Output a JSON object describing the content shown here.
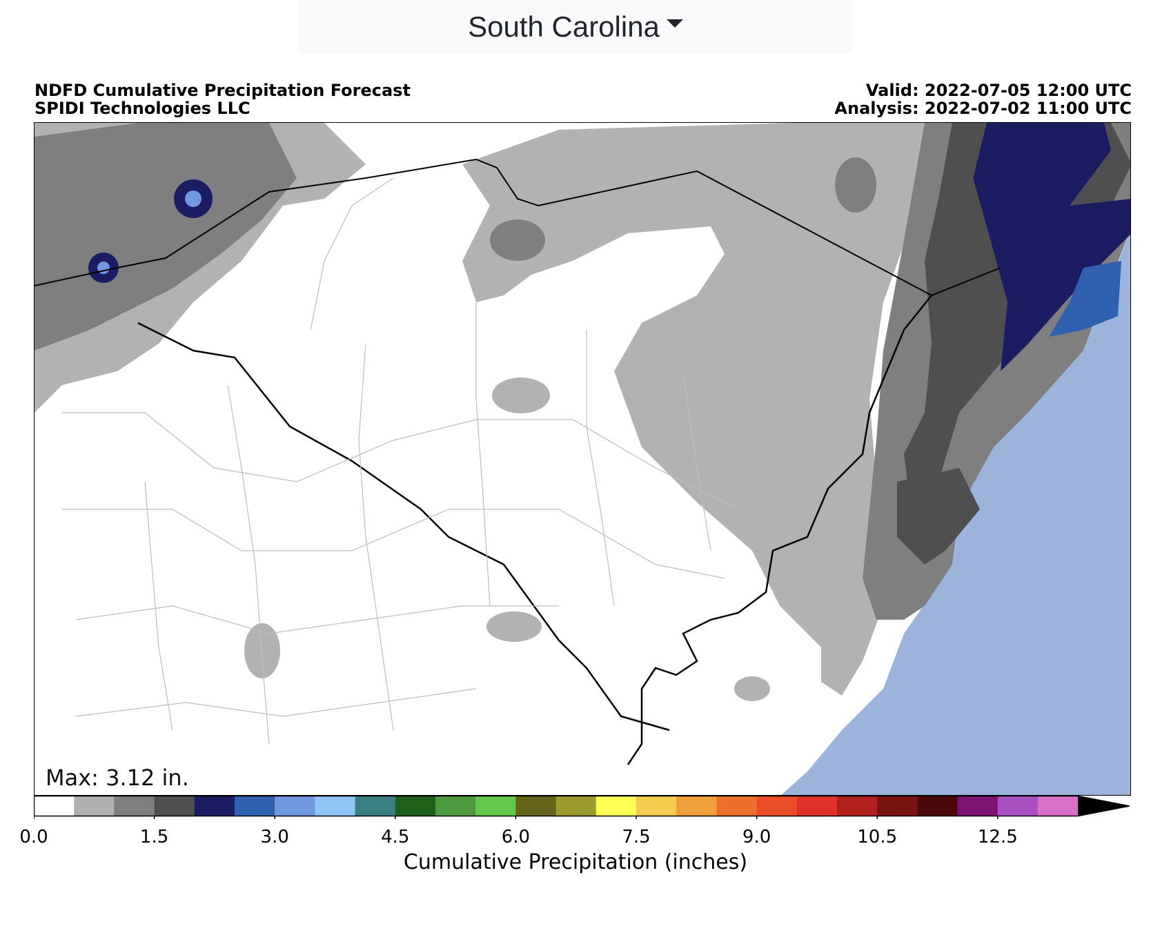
{
  "region_selector": {
    "selected": "South Carolina"
  },
  "header": {
    "title": "NDFD Cumulative Precipitation Forecast",
    "credit": "SPIDI Technologies LLC",
    "valid": "Valid: 2022-07-05 12:00 UTC",
    "analysis": "Analysis: 2022-07-02 11:00 UTC"
  },
  "map": {
    "max_label": "Max: 3.12 in."
  },
  "colorbar": {
    "label": "Cumulative Precipitation (inches)",
    "ticks": [
      "0.0",
      "1.5",
      "3.0",
      "4.5",
      "6.0",
      "7.5",
      "9.0",
      "10.5",
      "12.5"
    ],
    "colors": [
      "#ffffff",
      "#b0b0b0",
      "#7f7f7f",
      "#4f4f4f",
      "#1c1c63",
      "#3060b0",
      "#7298e0",
      "#90c4f4",
      "#3a8080",
      "#1f5f1a",
      "#4f9a3e",
      "#64c84f",
      "#656418",
      "#9b9b30",
      "#ffff55",
      "#f4cc4e",
      "#f0a03a",
      "#ec702c",
      "#e84f28",
      "#e0302a",
      "#b0201c",
      "#7a1410",
      "#4a0808",
      "#7e1470",
      "#a850c0",
      "#d870c8"
    ],
    "extend_color": "#000000"
  }
}
